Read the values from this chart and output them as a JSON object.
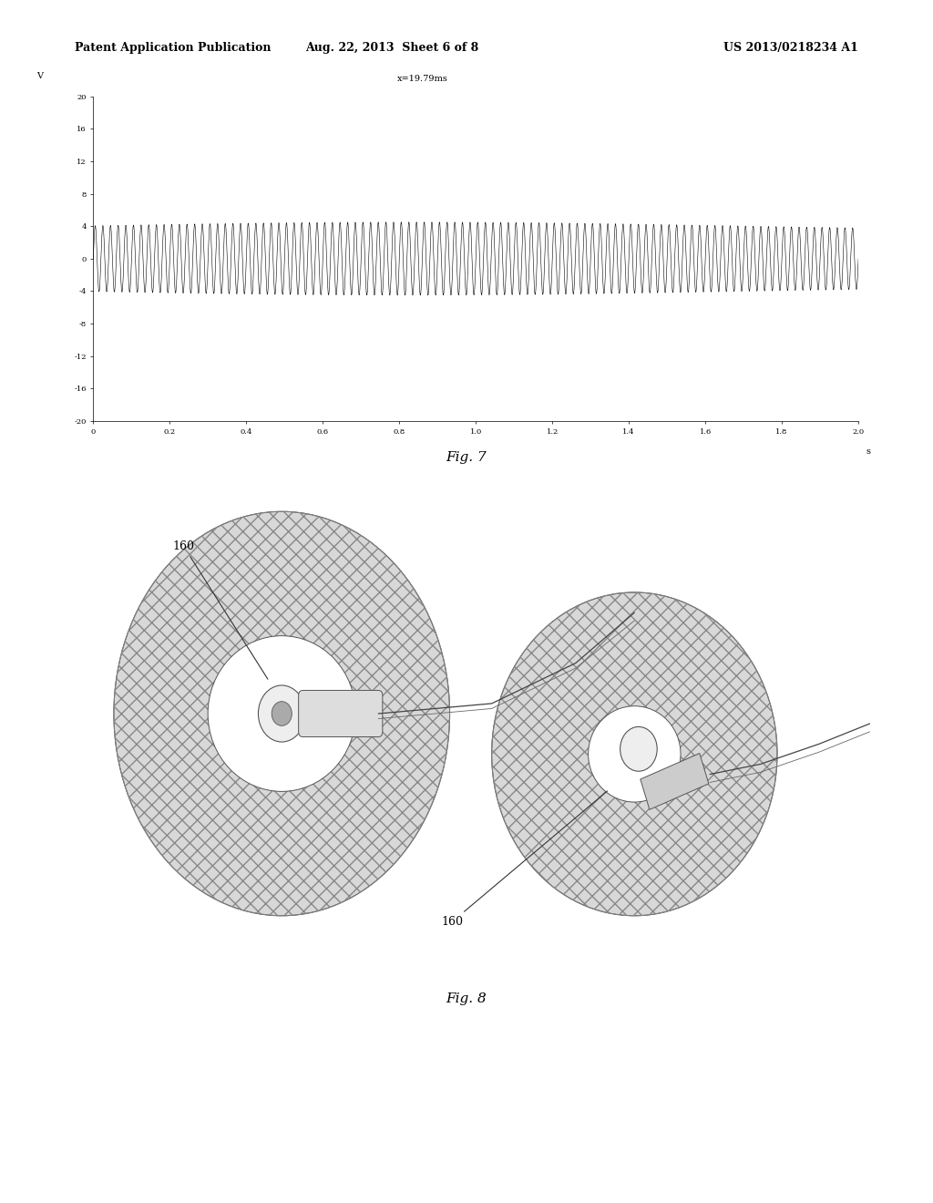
{
  "header_left": "Patent Application Publication",
  "header_center": "Aug. 22, 2013  Sheet 6 of 8",
  "header_right": "US 2013/0218234 A1",
  "fig7_label": "Fig. 7",
  "fig8_label": "Fig. 8",
  "waveform_annotation": "x=19.79ms",
  "ylabel": "V",
  "yticks": [
    20,
    16,
    12,
    8,
    4,
    0,
    -4,
    -8,
    -12,
    -16,
    -20
  ],
  "xticks": [
    0.0,
    0.2,
    0.4,
    0.6,
    0.8,
    1.0,
    1.2,
    1.4,
    1.6,
    1.8,
    2.0
  ],
  "xlabel_s": "s",
  "signal_freq": 50,
  "signal_duration": 2.0,
  "signal_amplitude": 4.5,
  "signal_color": "#000000",
  "background_color": "#ffffff",
  "label_160_1": "160",
  "label_160_2": "160"
}
